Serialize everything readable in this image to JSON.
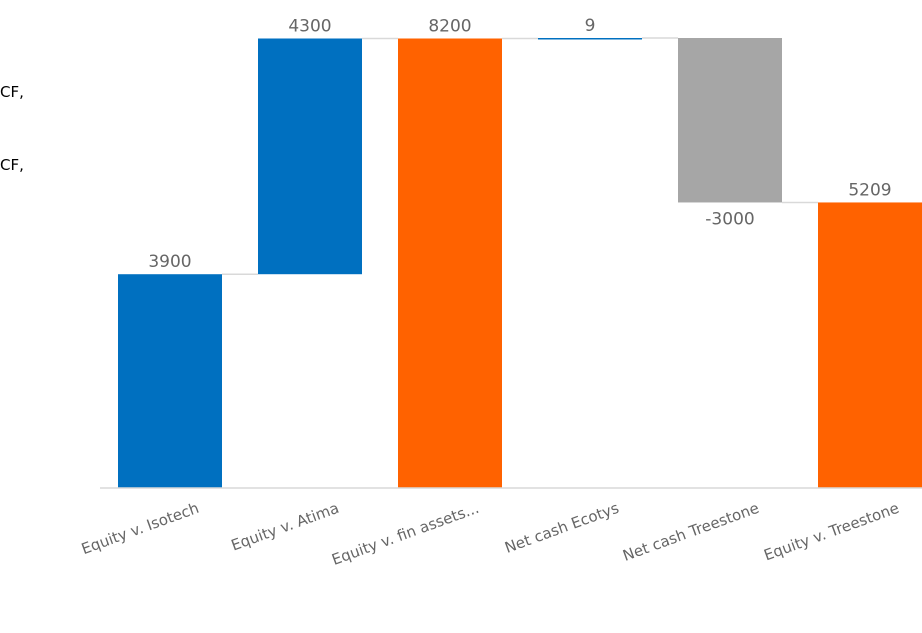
{
  "side_text": [
    "CF,",
    "CF,"
  ],
  "chart_data": {
    "type": "waterfall",
    "categories": [
      "Equity v. Isotech",
      "Equity v. Atima",
      "Equity v. fin assets...",
      "Net cash Ecotys",
      "Net cash Treestone",
      "Equity v. Treestone"
    ],
    "values": [
      3900,
      4300,
      8200,
      9,
      -3000,
      5209
    ],
    "value_labels": [
      "3900",
      "4300",
      "8200",
      "9",
      "-3000",
      "5209"
    ],
    "bar_kinds": [
      "increase",
      "increase",
      "total",
      "increase",
      "decrease",
      "total"
    ],
    "ylim": [
      0,
      8209
    ],
    "title": "",
    "xlabel": "",
    "ylabel": "",
    "grid": false,
    "legend": "none",
    "colors": {
      "increase": "#0070c0",
      "total": "#ff6200",
      "decrease": "#a6a6a6",
      "connector": "#d9d9d9",
      "axis": "#d9d9d9",
      "label": "#666666"
    }
  }
}
